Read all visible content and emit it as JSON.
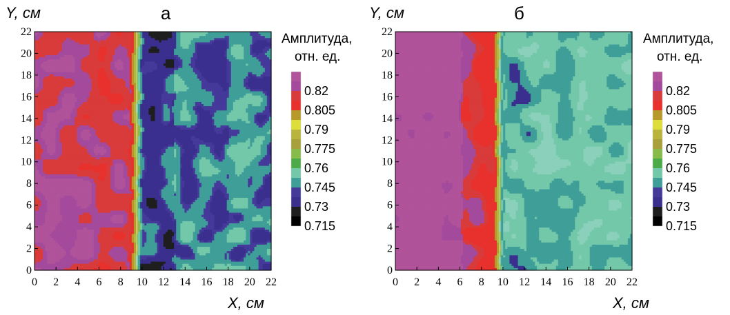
{
  "chart_data": [
    {
      "type": "heatmap",
      "panel_label": "а",
      "xlabel": "X, см",
      "ylabel": "Y, см",
      "xlim": [
        0,
        22
      ],
      "ylim": [
        0,
        22
      ],
      "x_ticks": [
        "0",
        "2",
        "4",
        "6",
        "8",
        "10",
        "12",
        "14",
        "16",
        "18",
        "20",
        "22"
      ],
      "y_ticks": [
        "0",
        "2",
        "4",
        "6",
        "8",
        "10",
        "12",
        "14",
        "16",
        "18",
        "20",
        "22"
      ],
      "boundary_x": 9.5,
      "regions": [
        {
          "x_range": [
            0,
            9.0
          ],
          "level": 0.815,
          "description_level_low": 0.805,
          "description_level_high": 0.83
        },
        {
          "x_range": [
            9.0,
            10.0
          ],
          "level": 0.77
        },
        {
          "x_range": [
            10.0,
            22.0
          ],
          "level": 0.735,
          "description_level_low": 0.715,
          "description_level_high": 0.745
        }
      ],
      "legend_title_line1": "Амплитуда,",
      "legend_title_line2": "отн. ед.",
      "levels": [
        "0.82",
        "0.805",
        "0.79",
        "0.775",
        "0.76",
        "0.745",
        "0.73",
        "0.715"
      ]
    },
    {
      "type": "heatmap",
      "panel_label": "б",
      "xlabel": "X, см",
      "ylabel": "Y, см",
      "xlim": [
        0,
        22
      ],
      "ylim": [
        0,
        22
      ],
      "x_ticks": [
        "0",
        "2",
        "4",
        "6",
        "8",
        "10",
        "12",
        "14",
        "16",
        "18",
        "20",
        "22"
      ],
      "y_ticks": [
        "0",
        "2",
        "4",
        "6",
        "8",
        "10",
        "12",
        "14",
        "16",
        "18",
        "20",
        "22"
      ],
      "boundary_x": 9.7,
      "regions": [
        {
          "x_range": [
            0,
            9.2
          ],
          "level": 0.822
        },
        {
          "x_range": [
            9.2,
            10.2
          ],
          "level": 0.77
        },
        {
          "x_range": [
            10.2,
            22.0
          ],
          "level": 0.742
        }
      ],
      "legend_title_line1": "Амплитуда,",
      "legend_title_line2": "отн. ед.",
      "levels": [
        "0.82",
        "0.805",
        "0.79",
        "0.775",
        "0.76",
        "0.745",
        "0.73",
        "0.715"
      ]
    }
  ],
  "colors": {
    "band_0_83": "#b0539a",
    "band_0_82": "#a44a9c",
    "band_0_81": "#d93a3a",
    "band_0_805": "#e8312c",
    "band_0_795": "#b89a2a",
    "band_0_79": "#dede3a",
    "band_0_78": "#b8b43c",
    "band_0_775": "#a8a03a",
    "band_0_765": "#88bc4a",
    "band_0_76": "#4cab48",
    "band_0_75": "#74c8aa",
    "band_0_745": "#3f9f98",
    "band_0_735": "#45399a",
    "band_0_73": "#3b2f8e",
    "band_0_72": "#1e1e1e",
    "band_0_715": "#000000"
  }
}
